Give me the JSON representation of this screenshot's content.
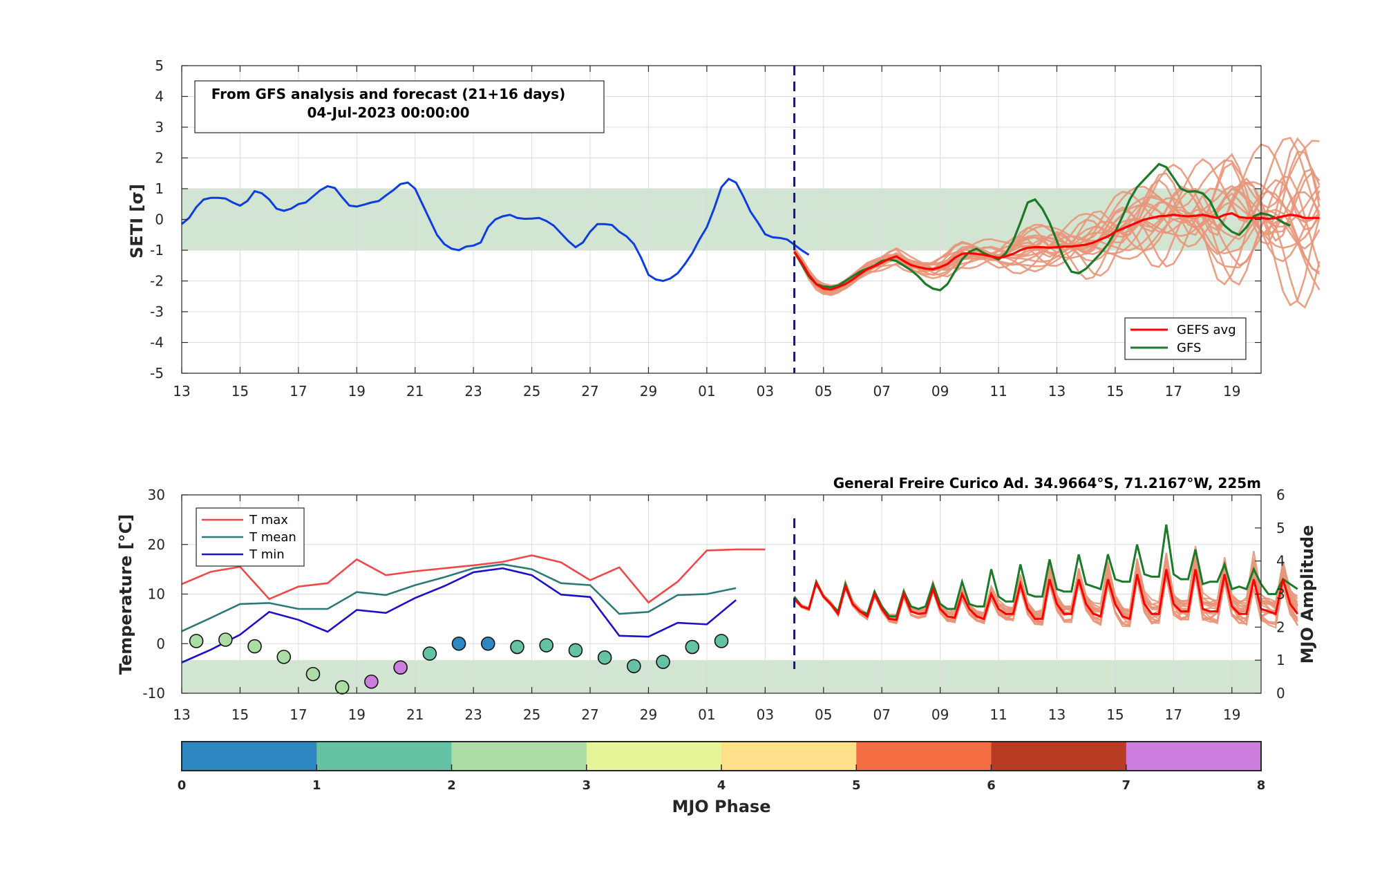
{
  "colors": {
    "analysis": "#0b3ee0",
    "gefs_avg": "#ff0000",
    "gfs": "#1a7a2a",
    "members": "#e8967a",
    "band": "#d2e4d2",
    "tmax": "#f04848",
    "tmean": "#2b7a78",
    "tmin": "#1c10c8",
    "divider": "#1a1a66"
  },
  "top": {
    "info_line1": "From GFS analysis and forecast (21+16 days)",
    "info_line2": "04-Jul-2023 00:00:00",
    "legend": {
      "avg": "GEFS avg",
      "gfs": "GFS"
    }
  },
  "bottom": {
    "station": "General Freire Curico Ad. 34.9664°S, 71.2167°W, 225m",
    "legend": {
      "tmax": "T max",
      "tmean": "T mean",
      "tmin": "T min"
    }
  },
  "colorbar": {
    "label": "MJO Phase",
    "ticks": [
      "0",
      "1",
      "2",
      "3",
      "4",
      "5",
      "6",
      "7",
      "8"
    ],
    "colors": [
      "#2f87c1",
      "#66c2a5",
      "#abdda4",
      "#e6f598",
      "#fee08b",
      "#f46d43",
      "#b73c23",
      "#cc7ddd"
    ]
  },
  "chart_data": [
    {
      "type": "line",
      "ylabel": "SETI [σ]",
      "ylim": [
        -5,
        5
      ],
      "yticks": [
        -5,
        -4,
        -3,
        -2,
        -1,
        0,
        1,
        2,
        3,
        4,
        5
      ],
      "xlim": [
        "2023-06-13",
        "2023-07-20"
      ],
      "xtick_labels": [
        "13",
        "15",
        "17",
        "19",
        "21",
        "23",
        "25",
        "27",
        "29",
        "01",
        "03",
        "05",
        "07",
        "09",
        "11",
        "13",
        "15",
        "17",
        "19"
      ],
      "shaded_band": [
        -1,
        1
      ],
      "forecast_start": "2023-07-04",
      "series": [
        {
          "name": "analysis",
          "x_start": "2023-06-13",
          "step_days": 0.25,
          "values": [
            -0.15,
            0.05,
            0.4,
            0.65,
            0.7,
            0.7,
            0.68,
            0.55,
            0.45,
            0.6,
            0.92,
            0.85,
            0.65,
            0.35,
            0.28,
            0.35,
            0.5,
            0.55,
            0.75,
            0.95,
            1.08,
            1.02,
            0.72,
            0.45,
            0.42,
            0.48,
            0.55,
            0.6,
            0.78,
            0.95,
            1.15,
            1.2,
            1.0,
            0.5,
            0.0,
            -0.5,
            -0.8,
            -0.95,
            -1.0,
            -0.88,
            -0.85,
            -0.75,
            -0.25,
            0.0,
            0.1,
            0.15,
            0.05,
            0.02,
            0.03,
            0.05,
            -0.05,
            -0.2,
            -0.45,
            -0.7,
            -0.9,
            -0.75,
            -0.4,
            -0.15,
            -0.15,
            -0.18,
            -0.4,
            -0.55,
            -0.8,
            -1.25,
            -1.8,
            -1.95,
            -2.0,
            -1.92,
            -1.75,
            -1.45,
            -1.1,
            -0.65,
            -0.25,
            0.35,
            1.05,
            1.32,
            1.2,
            0.75,
            0.25,
            -0.1,
            -0.48,
            -0.58,
            -0.6,
            -0.65,
            -0.82,
            -1.0,
            -1.15
          ]
        },
        {
          "name": "GEFS avg",
          "x_start": "2023-07-04",
          "step_days": 0.25,
          "values": [
            -1.05,
            -1.4,
            -1.8,
            -2.1,
            -2.25,
            -2.28,
            -2.2,
            -2.1,
            -1.95,
            -1.78,
            -1.62,
            -1.52,
            -1.4,
            -1.28,
            -1.2,
            -1.35,
            -1.48,
            -1.55,
            -1.6,
            -1.62,
            -1.55,
            -1.45,
            -1.25,
            -1.12,
            -1.1,
            -1.12,
            -1.15,
            -1.2,
            -1.25,
            -1.2,
            -1.12,
            -1.0,
            -0.92,
            -0.9,
            -0.9,
            -0.92,
            -0.9,
            -0.88,
            -0.88,
            -0.85,
            -0.82,
            -0.75,
            -0.65,
            -0.55,
            -0.4,
            -0.3,
            -0.2,
            -0.1,
            0.0,
            0.05,
            0.1,
            0.12,
            0.15,
            0.12,
            0.1,
            0.12,
            0.15,
            0.1,
            0.05,
            0.15,
            0.2,
            0.08,
            0.05,
            0.05,
            0.05,
            0.02,
            0.05,
            0.1,
            0.15,
            0.12,
            0.05,
            0.05,
            0.05
          ]
        },
        {
          "name": "GFS",
          "x_start": "2023-07-04",
          "step_days": 0.25,
          "values": [
            -1.05,
            -1.45,
            -1.85,
            -2.1,
            -2.18,
            -2.2,
            -2.15,
            -2.0,
            -1.85,
            -1.7,
            -1.6,
            -1.5,
            -1.35,
            -1.3,
            -1.35,
            -1.5,
            -1.65,
            -1.85,
            -2.1,
            -2.25,
            -2.3,
            -2.1,
            -1.7,
            -1.3,
            -1.05,
            -0.95,
            -1.1,
            -1.2,
            -1.3,
            -1.1,
            -0.7,
            -0.1,
            0.55,
            0.65,
            0.35,
            -0.1,
            -0.7,
            -1.3,
            -1.7,
            -1.75,
            -1.6,
            -1.35,
            -1.1,
            -0.8,
            -0.4,
            0.1,
            0.65,
            1.05,
            1.3,
            1.55,
            1.8,
            1.7,
            1.35,
            1.0,
            0.9,
            0.92,
            0.85,
            0.6,
            0.1,
            -0.2,
            -0.4,
            -0.5,
            -0.25,
            0.1,
            0.2,
            0.15,
            0.05,
            -0.1,
            -0.2
          ]
        }
      ]
    },
    {
      "type": "line",
      "ylabel": "Temperature [°C]",
      "ylabel_right": "MJO Amplitude",
      "ylim": [
        -10,
        30
      ],
      "yticks": [
        -10,
        0,
        10,
        20,
        30
      ],
      "ylim_right": [
        0,
        6
      ],
      "yticks_right": [
        0,
        1,
        2,
        3,
        4,
        5,
        6
      ],
      "shaded_band_right": [
        0,
        1
      ],
      "xlim": [
        "2023-06-13",
        "2023-07-20"
      ],
      "xtick_labels": [
        "13",
        "15",
        "17",
        "19",
        "21",
        "23",
        "25",
        "27",
        "29",
        "01",
        "03",
        "05",
        "07",
        "09",
        "11",
        "13",
        "15",
        "17",
        "19"
      ],
      "forecast_start": "2023-07-04",
      "series": [
        {
          "name": "T max",
          "x_start": "2023-06-13",
          "step_days": 1,
          "values": [
            12.0,
            14.5,
            15.5,
            9.0,
            11.5,
            12.2,
            17.0,
            13.8,
            14.6,
            15.2,
            15.8,
            16.5,
            17.8,
            16.4,
            12.8,
            15.4,
            8.3,
            12.5,
            18.8,
            19.0,
            19.0
          ]
        },
        {
          "name": "T mean",
          "x_start": "2023-06-13",
          "step_days": 1,
          "values": [
            2.5,
            5.2,
            8.0,
            8.2,
            7.0,
            7.0,
            10.4,
            9.8,
            11.8,
            13.4,
            15.2,
            16.0,
            15.0,
            12.2,
            11.8,
            6.0,
            6.4,
            9.8,
            10.0,
            11.2
          ]
        },
        {
          "name": "T min",
          "x_start": "2023-06-13",
          "step_days": 1,
          "values": [
            -3.8,
            -1.2,
            1.8,
            6.4,
            4.8,
            2.4,
            6.8,
            6.2,
            9.2,
            11.6,
            14.4,
            15.2,
            13.8,
            9.9,
            9.4,
            1.6,
            1.4,
            4.2,
            3.9,
            8.8
          ]
        },
        {
          "name": "MJO amplitude",
          "x_start": "2023-06-13.5",
          "step_days": 1,
          "values": [
            1.58,
            1.62,
            1.42,
            1.1,
            0.58,
            0.18,
            0.35,
            0.78,
            1.2,
            1.5,
            1.5,
            1.4,
            1.45,
            1.3,
            1.08,
            0.82,
            0.95,
            1.4,
            1.58
          ],
          "phase_colors": [
            "#abdda4",
            "#abdda4",
            "#abdda4",
            "#abdda4",
            "#abdda4",
            "#abdda4",
            "#cc7ddd",
            "#cc7ddd",
            "#66c2a5",
            "#2f87c1",
            "#2f87c1",
            "#66c2a5",
            "#66c2a5",
            "#66c2a5",
            "#66c2a5",
            "#66c2a5",
            "#66c2a5",
            "#66c2a5",
            "#66c2a5"
          ]
        },
        {
          "name": "forecast T max (GEFS avg)",
          "x_start": "2023-07-04",
          "step_days": 0.25,
          "values": [
            9.0,
            7.5,
            7.0,
            12.2,
            9.5,
            8.0,
            6.0,
            11.5,
            8.0,
            6.5,
            5.5,
            10.0,
            7.0,
            5.0,
            4.8,
            10.0,
            6.5,
            6.0,
            6.2,
            11.0,
            7.0,
            5.5,
            5.2,
            10.0,
            7.0,
            5.5,
            5.0,
            10.0,
            7.0,
            6.0,
            6.0,
            12.0,
            7.0,
            5.0,
            5.0,
            13.0,
            8.0,
            6.0,
            6.0,
            13.0,
            8.0,
            6.0,
            5.5,
            13.0,
            8.0,
            5.5,
            5.0,
            14.0,
            8.0,
            6.0,
            6.0,
            15.0,
            8.0,
            6.5,
            6.5,
            15.0,
            7.0,
            6.5,
            6.5,
            14.0,
            7.5,
            6.0,
            6.0,
            13.0,
            7.0,
            6.5,
            6.0,
            13.0,
            8.0,
            6.0
          ]
        },
        {
          "name": "forecast GFS",
          "x_start": "2023-07-04",
          "step_days": 0.25,
          "values": [
            9.5,
            7.5,
            7.0,
            12.5,
            9.5,
            8.0,
            6.5,
            12.0,
            8.0,
            6.5,
            6.0,
            10.5,
            7.5,
            5.5,
            5.5,
            10.5,
            7.5,
            7.0,
            7.5,
            12.0,
            8.0,
            7.0,
            7.0,
            12.5,
            8.0,
            7.5,
            7.5,
            15.0,
            9.5,
            8.5,
            8.5,
            16.0,
            10.0,
            9.5,
            9.5,
            17.0,
            11.0,
            10.5,
            10.5,
            18.0,
            12.0,
            11.5,
            11.0,
            18.0,
            13.0,
            12.5,
            12.5,
            20.0,
            14.0,
            13.5,
            13.5,
            24.0,
            14.0,
            13.0,
            13.0,
            19.0,
            12.0,
            12.5,
            12.5,
            16.0,
            11.0,
            11.5,
            11.0,
            15.0,
            12.0,
            10.0,
            10.0,
            13.0,
            12.0,
            11.0
          ]
        }
      ]
    }
  ]
}
